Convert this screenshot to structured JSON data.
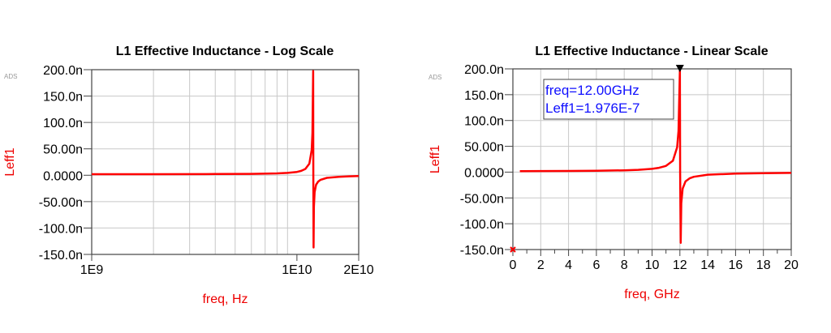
{
  "chart_data": [
    {
      "type": "line",
      "title": "L1 Effective Inductance - Log Scale",
      "watermark": "ADS",
      "xlabel": "freq, Hz",
      "ylabel": "Leff1",
      "xscale": "log",
      "xlim": [
        1000000000.0,
        20000000000.0
      ],
      "ylim": [
        -1.5e-07,
        2e-07
      ],
      "xticks": [
        {
          "v": 1000000000.0,
          "label": "1E9"
        },
        {
          "v": 10000000000.0,
          "label": "1E10"
        },
        {
          "v": 20000000000.0,
          "label": "2E10"
        }
      ],
      "yticks": [
        {
          "v": 2e-07,
          "label": "200.0n"
        },
        {
          "v": 1.5e-07,
          "label": "150.0n"
        },
        {
          "v": 1e-07,
          "label": "100.0n"
        },
        {
          "v": 5e-08,
          "label": "50.00n"
        },
        {
          "v": 0,
          "label": "0.0000"
        },
        {
          "v": -5e-08,
          "label": "-50.00n"
        },
        {
          "v": -1e-07,
          "label": "-100.0n"
        },
        {
          "v": -1.5e-07,
          "label": "-150.0n"
        }
      ],
      "grid": true,
      "series": [
        {
          "name": "Leff1",
          "color": "#ff0000",
          "x_ghz": [
            1,
            2,
            4,
            6,
            8,
            9,
            10,
            10.5,
            11,
            11.5,
            11.8,
            11.9,
            12.0,
            12.02,
            12.06,
            12.1,
            12.2,
            12.4,
            12.7,
            13,
            14,
            16,
            18,
            20
          ],
          "y_n": [
            2.0,
            2.05,
            2.25,
            2.6,
            3.5,
            4.4,
            6.3,
            8.3,
            12,
            22,
            48,
            80,
            197.6,
            0,
            -137,
            -60,
            -32,
            -18,
            -12,
            -9,
            -5,
            -3,
            -2,
            -1.5
          ]
        }
      ]
    },
    {
      "type": "line",
      "title": "L1 Effective Inductance - Linear Scale",
      "watermark": "ADS",
      "xlabel": "freq, GHz",
      "ylabel": "Leff1",
      "xscale": "linear",
      "xlim": [
        0,
        20
      ],
      "ylim": [
        -1.5e-07,
        2e-07
      ],
      "xticks": [
        {
          "v": 0,
          "label": "0"
        },
        {
          "v": 2,
          "label": "2"
        },
        {
          "v": 4,
          "label": "4"
        },
        {
          "v": 6,
          "label": "6"
        },
        {
          "v": 8,
          "label": "8"
        },
        {
          "v": 10,
          "label": "10"
        },
        {
          "v": 12,
          "label": "12"
        },
        {
          "v": 14,
          "label": "14"
        },
        {
          "v": 16,
          "label": "16"
        },
        {
          "v": 18,
          "label": "18"
        },
        {
          "v": 20,
          "label": "20"
        }
      ],
      "yticks": [
        {
          "v": 2e-07,
          "label": "200.0n"
        },
        {
          "v": 1.5e-07,
          "label": "150.0n"
        },
        {
          "v": 1e-07,
          "label": "100.0n"
        },
        {
          "v": 5e-08,
          "label": "50.00n"
        },
        {
          "v": 0,
          "label": "0.0000"
        },
        {
          "v": -5e-08,
          "label": "-50.00n"
        },
        {
          "v": -1e-07,
          "label": "-100.0n"
        },
        {
          "v": -1.5e-07,
          "label": "-150.0n"
        }
      ],
      "grid": true,
      "series": [
        {
          "name": "Leff1",
          "color": "#ff0000",
          "x_ghz": [
            0.5,
            2,
            4,
            6,
            8,
            9,
            10,
            10.5,
            11,
            11.5,
            11.8,
            11.9,
            12.0,
            12.02,
            12.06,
            12.1,
            12.2,
            12.4,
            12.7,
            13,
            14,
            16,
            18,
            20
          ],
          "y_n": [
            2.0,
            2.05,
            2.25,
            2.6,
            3.5,
            4.4,
            6.3,
            8.3,
            12,
            22,
            48,
            80,
            197.6,
            0,
            -137,
            -60,
            -32,
            -18,
            -12,
            -9,
            -5,
            -3,
            -2,
            -1.5
          ]
        }
      ],
      "marker": {
        "x_ghz": 12.0,
        "y_n": 197.6,
        "lines": [
          "freq=12.00GHz",
          "Leff1=1.976E-7"
        ]
      },
      "origin_marker": {
        "x_ghz": 0,
        "y_n": -150
      }
    }
  ]
}
